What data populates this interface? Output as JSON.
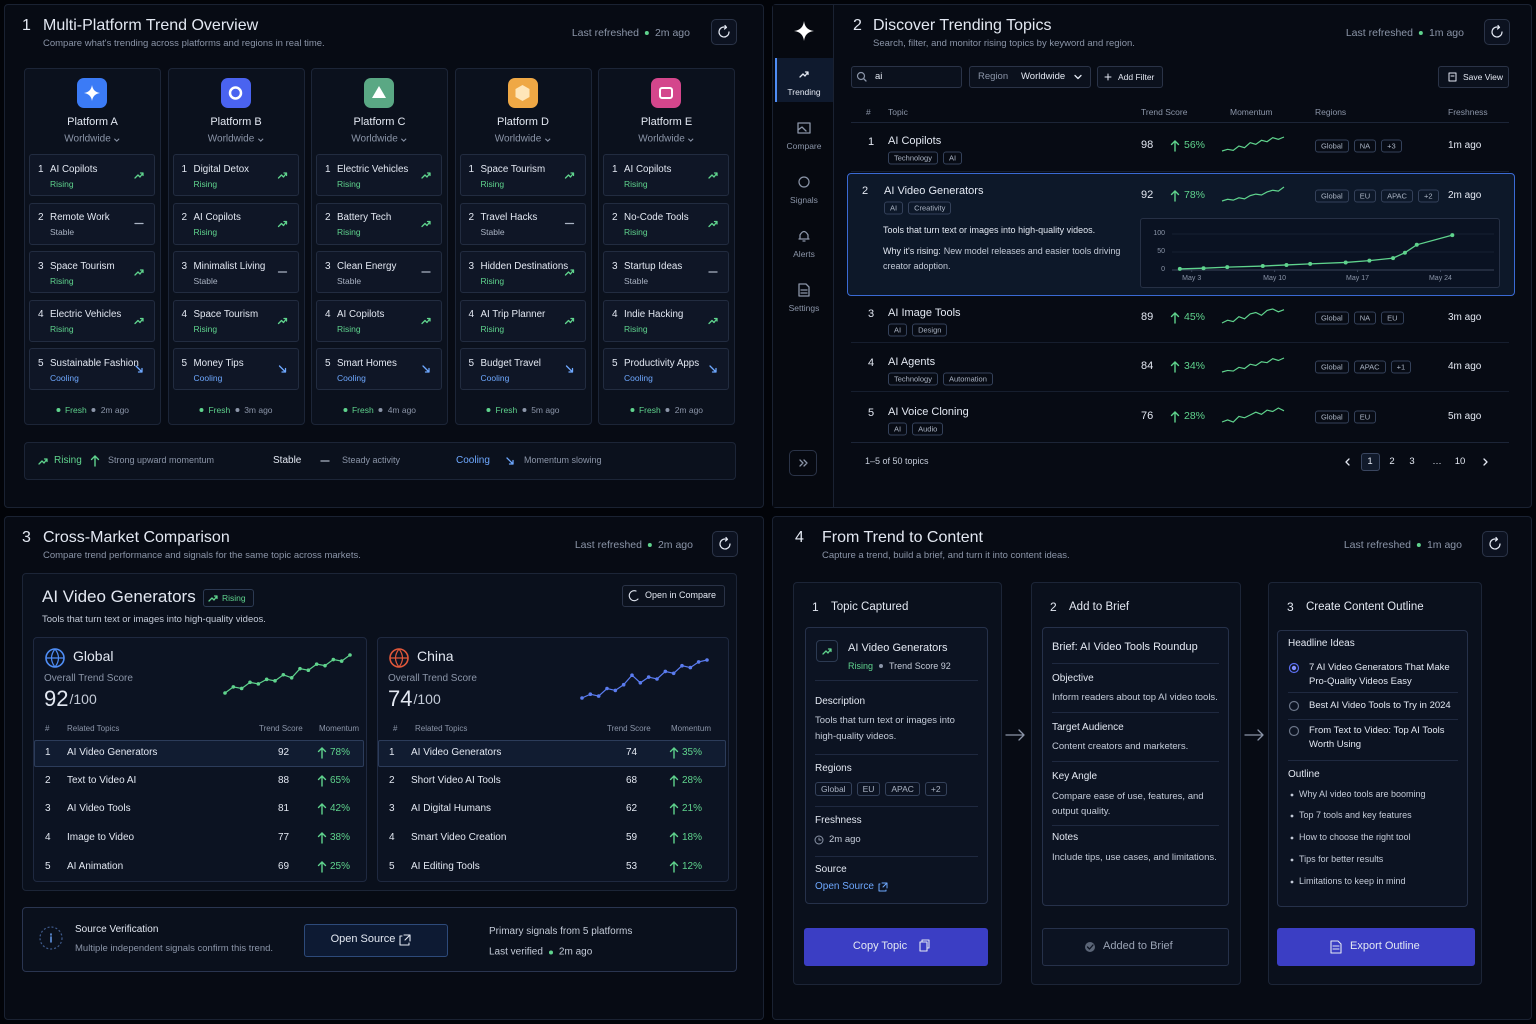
{
  "panel1": {
    "number": 1,
    "title": "Multi-Platform Trend Overview",
    "subtitle": "Compare what's trending across platforms and regions in real time.",
    "refreshed_label": "Last refreshed",
    "refreshed": "2m ago",
    "platforms": [
      {
        "name": "Platform A",
        "region": "Worldwide",
        "color": "#3b7bf6",
        "topics": [
          {
            "rank": 1,
            "name": "AI Copilots",
            "status": "Rising"
          },
          {
            "rank": 2,
            "name": "Remote Work",
            "status": "Stable"
          },
          {
            "rank": 3,
            "name": "Space Tourism",
            "status": "Rising"
          },
          {
            "rank": 4,
            "name": "Electric Vehicles",
            "status": "Rising"
          },
          {
            "rank": 5,
            "name": "Sustainable Fashion",
            "status": "Cooling"
          }
        ],
        "fresh": "Fresh",
        "fresh_time": "2m ago"
      },
      {
        "name": "Platform B",
        "region": "Worldwide",
        "color": "#4a63f0",
        "topics": [
          {
            "rank": 1,
            "name": "Digital Detox",
            "status": "Rising"
          },
          {
            "rank": 2,
            "name": "AI Copilots",
            "status": "Rising"
          },
          {
            "rank": 3,
            "name": "Minimalist Living",
            "status": "Stable"
          },
          {
            "rank": 4,
            "name": "Space Tourism",
            "status": "Rising"
          },
          {
            "rank": 5,
            "name": "Money Tips",
            "status": "Cooling"
          }
        ],
        "fresh": "Fresh",
        "fresh_time": "3m ago"
      },
      {
        "name": "Platform C",
        "region": "Worldwide",
        "color": "#5aa884",
        "topics": [
          {
            "rank": 1,
            "name": "Electric Vehicles",
            "status": "Rising"
          },
          {
            "rank": 2,
            "name": "Battery Tech",
            "status": "Rising"
          },
          {
            "rank": 3,
            "name": "Clean Energy",
            "status": "Stable"
          },
          {
            "rank": 4,
            "name": "AI Copilots",
            "status": "Rising"
          },
          {
            "rank": 5,
            "name": "Smart Homes",
            "status": "Cooling"
          }
        ],
        "fresh": "Fresh",
        "fresh_time": "4m ago"
      },
      {
        "name": "Platform D",
        "region": "Worldwide",
        "color": "#efa845",
        "topics": [
          {
            "rank": 1,
            "name": "Space Tourism",
            "status": "Rising"
          },
          {
            "rank": 2,
            "name": "Travel Hacks",
            "status": "Stable"
          },
          {
            "rank": 3,
            "name": "Hidden Destinations",
            "status": "Rising"
          },
          {
            "rank": 4,
            "name": "AI Trip Planner",
            "status": "Rising"
          },
          {
            "rank": 5,
            "name": "Budget Travel",
            "status": "Cooling"
          }
        ],
        "fresh": "Fresh",
        "fresh_time": "5m ago"
      },
      {
        "name": "Platform E",
        "region": "Worldwide",
        "color": "#d4468c",
        "topics": [
          {
            "rank": 1,
            "name": "AI Copilots",
            "status": "Rising"
          },
          {
            "rank": 2,
            "name": "No-Code Tools",
            "status": "Rising"
          },
          {
            "rank": 3,
            "name": "Startup Ideas",
            "status": "Stable"
          },
          {
            "rank": 4,
            "name": "Indie Hacking",
            "status": "Rising"
          },
          {
            "rank": 5,
            "name": "Productivity Apps",
            "status": "Cooling"
          }
        ],
        "fresh": "Fresh",
        "fresh_time": "2m ago"
      }
    ],
    "legend": [
      {
        "label": "Rising",
        "desc": "Strong upward momentum",
        "color": "#5fd38d"
      },
      {
        "label": "Stable",
        "desc": "Steady activity",
        "color": "#aab3c3"
      },
      {
        "label": "Cooling",
        "desc": "Momentum slowing",
        "color": "#6ea8ff"
      }
    ]
  },
  "panel2": {
    "number": 2,
    "title": "Discover Trending Topics",
    "subtitle": "Search, filter, and monitor rising topics by keyword and region.",
    "refreshed_label": "Last refreshed",
    "refreshed": "1m ago",
    "nav": [
      "Trending",
      "Compare",
      "Signals",
      "Alerts",
      "Settings"
    ],
    "search": "ai",
    "region_label": "Region",
    "region": "Worldwide",
    "add_filter": "Add Filter",
    "save_view": "Save View",
    "columns": [
      "#",
      "Topic",
      "Trend Score",
      "Momentum",
      "Regions",
      "Freshness"
    ],
    "rows": [
      {
        "rank": 1,
        "topic": "AI Copilots",
        "tags": [
          "Technology",
          "AI"
        ],
        "score": 98,
        "momentum": "56%",
        "regions": [
          "Global",
          "NA",
          "+3"
        ],
        "freshness": "1m ago",
        "trend": [
          30,
          35,
          32,
          45,
          40,
          55,
          50,
          62,
          58,
          70,
          65,
          72
        ]
      },
      {
        "rank": 2,
        "topic": "AI Video Generators",
        "tags": [
          "AI",
          "Creativity"
        ],
        "score": 92,
        "momentum": "78%",
        "regions": [
          "Global",
          "EU",
          "APAC",
          "+2"
        ],
        "freshness": "2m ago",
        "trend": [
          20,
          28,
          24,
          35,
          30,
          45,
          52,
          48,
          62,
          70,
          66,
          85
        ],
        "description": "Tools that turn text or images into high-quality videos.",
        "why_label": "Why it's rising:",
        "why": "New model releases and easier tools driving creator adoption.",
        "chart": {
          "type": "line",
          "x": [
            2,
            4,
            6,
            9,
            11,
            13,
            16,
            18,
            20,
            21,
            22,
            25
          ],
          "values": [
            3,
            5,
            8,
            11,
            14,
            17,
            21,
            26,
            33,
            48,
            70,
            97
          ],
          "color": "#5fd38d",
          "xlim": [
            1,
            27
          ],
          "xticks": [
            {
              "value": 3,
              "label": "May 3"
            },
            {
              "value": 10,
              "label": "May 10"
            },
            {
              "value": 17,
              "label": "May 17"
            },
            {
              "value": 24,
              "label": "May 24"
            }
          ],
          "ylim": [
            0,
            100
          ],
          "yticks": [
            0,
            50,
            100
          ]
        }
      },
      {
        "rank": 3,
        "topic": "AI Image Tools",
        "tags": [
          "AI",
          "Design"
        ],
        "score": 89,
        "momentum": "45%",
        "regions": [
          "Global",
          "NA",
          "EU"
        ],
        "freshness": "3m ago",
        "trend": [
          30,
          38,
          34,
          48,
          42,
          56,
          60,
          52,
          66,
          70,
          62,
          68
        ]
      },
      {
        "rank": 4,
        "topic": "AI Agents",
        "tags": [
          "Technology",
          "Automation"
        ],
        "score": 84,
        "momentum": "34%",
        "regions": [
          "Global",
          "APAC",
          "+1"
        ],
        "freshness": "4m ago",
        "trend": [
          25,
          30,
          28,
          40,
          36,
          50,
          46,
          58,
          55,
          68,
          62,
          70
        ]
      },
      {
        "rank": 5,
        "topic": "AI Voice Cloning",
        "tags": [
          "AI",
          "Audio"
        ],
        "score": 76,
        "momentum": "28%",
        "regions": [
          "Global",
          "EU"
        ],
        "freshness": "5m ago",
        "trend": [
          30,
          36,
          30,
          46,
          42,
          50,
          58,
          52,
          64,
          60,
          70,
          62
        ]
      }
    ],
    "pagination": "1–5 of 50 topics",
    "pages": [
      1,
      2,
      3,
      "…",
      10
    ]
  },
  "panel3": {
    "number": 3,
    "title": "Cross-Market Comparison",
    "subtitle": "Compare trend performance and signals for the same topic across markets.",
    "refreshed_label": "Last refreshed",
    "refreshed": "2m ago",
    "topic": "AI Video Generators",
    "badge": "Rising",
    "open_compare": "Open in Compare",
    "description": "Tools that turn text or images into high-quality videos.",
    "markets": [
      {
        "name": "Global",
        "color": "#4f8df5",
        "score_label": "Overall Trend Score",
        "score": 92,
        "score_suffix": "/100",
        "columns": [
          "#",
          "Related Topics",
          "Trend Score",
          "Momentum"
        ],
        "trend": [
          20,
          28,
          26,
          34,
          32,
          38,
          36,
          44,
          40,
          52,
          50,
          58,
          56,
          64,
          62,
          70
        ],
        "line_color": "#5fd38d",
        "rows": [
          {
            "rank": 1,
            "name": "AI Video Generators",
            "score": 92,
            "momentum": "78%"
          },
          {
            "rank": 2,
            "name": "Text to Video AI",
            "score": 88,
            "momentum": "65%"
          },
          {
            "rank": 3,
            "name": "AI Video Tools",
            "score": 81,
            "momentum": "42%"
          },
          {
            "rank": 4,
            "name": "Image to Video",
            "score": 77,
            "momentum": "38%"
          },
          {
            "rank": 5,
            "name": "AI Animation",
            "score": 69,
            "momentum": "25%"
          }
        ]
      },
      {
        "name": "China",
        "color": "#e0573a",
        "score_label": "Overall Trend Score",
        "score": 74,
        "score_suffix": "/100",
        "columns": [
          "#",
          "Related Topics",
          "Trend Score",
          "Momentum"
        ],
        "trend": [
          20,
          24,
          22,
          30,
          28,
          34,
          44,
          36,
          42,
          40,
          48,
          46,
          54,
          52,
          58,
          60
        ],
        "line_color": "#5b7cf0",
        "rows": [
          {
            "rank": 1,
            "name": "AI Video Generators",
            "score": 74,
            "momentum": "35%"
          },
          {
            "rank": 2,
            "name": "Short Video AI Tools",
            "score": 68,
            "momentum": "28%"
          },
          {
            "rank": 3,
            "name": "AI Digital Humans",
            "score": 62,
            "momentum": "21%"
          },
          {
            "rank": 4,
            "name": "Smart Video Creation",
            "score": 59,
            "momentum": "18%"
          },
          {
            "rank": 5,
            "name": "AI Editing Tools",
            "score": 53,
            "momentum": "12%"
          }
        ]
      }
    ],
    "source": {
      "title": "Source Verification",
      "desc": "Multiple independent signals confirm this trend.",
      "button": "Open Source",
      "primary": "Primary signals from 5 platforms",
      "verified_label": "Last verified",
      "verified": "2m ago"
    }
  },
  "panel4": {
    "number": 4,
    "title": "From Trend to Content",
    "subtitle": "Capture a trend, build a brief, and turn it into content ideas.",
    "refreshed_label": "Last refreshed",
    "refreshed": "1m ago",
    "steps": [
      {
        "number": 1,
        "title": "Topic Captured",
        "topic": "AI Video Generators",
        "status": "Rising",
        "score": "Trend Score 92",
        "description_label": "Description",
        "description": "Tools that turn text or images into high-quality videos.",
        "regions_label": "Regions",
        "regions": [
          "Global",
          "EU",
          "APAC",
          "+2"
        ],
        "freshness_label": "Freshness",
        "freshness": "2m ago",
        "source_label": "Source",
        "source_link": "Open Source",
        "button": "Copy Topic"
      },
      {
        "number": 2,
        "title": "Add to Brief",
        "brief": "Brief: AI Video Tools Roundup",
        "sections": [
          {
            "label": "Objective",
            "text": "Inform readers about top AI video tools."
          },
          {
            "label": "Target Audience",
            "text": "Content creators and marketers."
          },
          {
            "label": "Key Angle",
            "text": "Compare ease of use, features, and output quality."
          },
          {
            "label": "Notes",
            "text": "Include tips, use cases, and limitations."
          }
        ],
        "button": "Added to Brief"
      },
      {
        "number": 3,
        "title": "Create Content Outline",
        "headline_label": "Headline Ideas",
        "headlines": [
          "7 AI Video Generators That Make Pro-Quality Videos Easy",
          "Best AI Video Tools to Try in 2024",
          "From Text to Video: Top AI Tools Worth Using"
        ],
        "outline_label": "Outline",
        "outline": [
          "Why AI video tools are booming",
          "Top 7 tools and key features",
          "How to choose the right tool",
          "Tips for better results",
          "Limitations to keep in mind"
        ],
        "button": "Export Outline"
      }
    ]
  }
}
